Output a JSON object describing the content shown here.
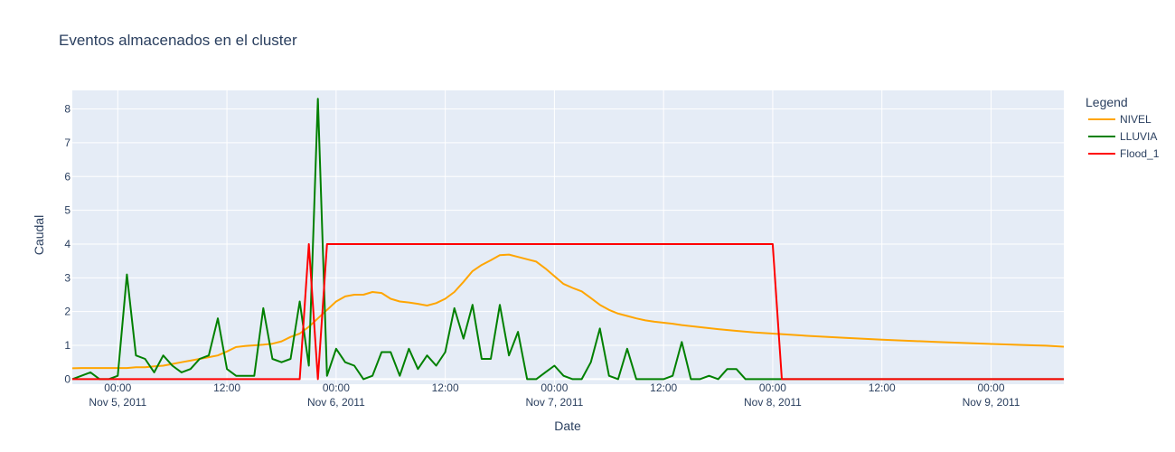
{
  "chart_data": {
    "type": "line",
    "title": "Eventos almacenados en el cluster",
    "xlabel": "Date",
    "ylabel": "Caudal",
    "legend_title": "Legend",
    "legend_position": "right",
    "grid": true,
    "xlim": [
      "2011-11-04 19:00",
      "2011-11-09 08:00"
    ],
    "ylim": [
      -0.15,
      8.55
    ],
    "x_ticks": [
      {
        "t": "2011-11-05 00:00",
        "label": "00:00",
        "sublabel": "Nov 5, 2011"
      },
      {
        "t": "2011-11-05 12:00",
        "label": "12:00",
        "sublabel": ""
      },
      {
        "t": "2011-11-06 00:00",
        "label": "00:00",
        "sublabel": "Nov 6, 2011"
      },
      {
        "t": "2011-11-06 12:00",
        "label": "12:00",
        "sublabel": ""
      },
      {
        "t": "2011-11-07 00:00",
        "label": "00:00",
        "sublabel": "Nov 7, 2011"
      },
      {
        "t": "2011-11-07 12:00",
        "label": "12:00",
        "sublabel": ""
      },
      {
        "t": "2011-11-08 00:00",
        "label": "00:00",
        "sublabel": "Nov 8, 2011"
      },
      {
        "t": "2011-11-08 12:00",
        "label": "12:00",
        "sublabel": ""
      },
      {
        "t": "2011-11-09 00:00",
        "label": "00:00",
        "sublabel": "Nov 9, 2011"
      }
    ],
    "y_ticks": [
      0,
      1,
      2,
      3,
      4,
      5,
      6,
      7,
      8
    ],
    "series": [
      {
        "name": "NIVEL",
        "color": "#FFA500",
        "points": [
          [
            "2011-11-04 19:00",
            0.32
          ],
          [
            "2011-11-04 20:00",
            0.33
          ],
          [
            "2011-11-04 21:00",
            0.33
          ],
          [
            "2011-11-04 22:00",
            0.33
          ],
          [
            "2011-11-04 23:00",
            0.33
          ],
          [
            "2011-11-05 00:00",
            0.33
          ],
          [
            "2011-11-05 01:00",
            0.33
          ],
          [
            "2011-11-05 02:00",
            0.35
          ],
          [
            "2011-11-05 03:00",
            0.35
          ],
          [
            "2011-11-05 04:00",
            0.38
          ],
          [
            "2011-11-05 05:00",
            0.4
          ],
          [
            "2011-11-05 06:00",
            0.45
          ],
          [
            "2011-11-05 07:00",
            0.5
          ],
          [
            "2011-11-05 08:00",
            0.55
          ],
          [
            "2011-11-05 09:00",
            0.6
          ],
          [
            "2011-11-05 10:00",
            0.65
          ],
          [
            "2011-11-05 11:00",
            0.7
          ],
          [
            "2011-11-05 12:00",
            0.82
          ],
          [
            "2011-11-05 13:00",
            0.95
          ],
          [
            "2011-11-05 14:00",
            0.98
          ],
          [
            "2011-11-05 15:00",
            1.0
          ],
          [
            "2011-11-05 16:00",
            1.02
          ],
          [
            "2011-11-05 17:00",
            1.05
          ],
          [
            "2011-11-05 18:00",
            1.12
          ],
          [
            "2011-11-05 19:00",
            1.25
          ],
          [
            "2011-11-05 20:00",
            1.35
          ],
          [
            "2011-11-05 21:00",
            1.55
          ],
          [
            "2011-11-05 22:00",
            1.8
          ],
          [
            "2011-11-05 23:00",
            2.05
          ],
          [
            "2011-11-06 00:00",
            2.3
          ],
          [
            "2011-11-06 01:00",
            2.45
          ],
          [
            "2011-11-06 02:00",
            2.5
          ],
          [
            "2011-11-06 03:00",
            2.5
          ],
          [
            "2011-11-06 04:00",
            2.58
          ],
          [
            "2011-11-06 05:00",
            2.55
          ],
          [
            "2011-11-06 06:00",
            2.38
          ],
          [
            "2011-11-06 07:00",
            2.3
          ],
          [
            "2011-11-06 08:00",
            2.27
          ],
          [
            "2011-11-06 09:00",
            2.23
          ],
          [
            "2011-11-06 10:00",
            2.18
          ],
          [
            "2011-11-06 11:00",
            2.25
          ],
          [
            "2011-11-06 12:00",
            2.38
          ],
          [
            "2011-11-06 13:00",
            2.58
          ],
          [
            "2011-11-06 14:00",
            2.88
          ],
          [
            "2011-11-06 15:00",
            3.2
          ],
          [
            "2011-11-06 16:00",
            3.38
          ],
          [
            "2011-11-06 17:00",
            3.52
          ],
          [
            "2011-11-06 18:00",
            3.67
          ],
          [
            "2011-11-06 19:00",
            3.69
          ],
          [
            "2011-11-06 20:00",
            3.62
          ],
          [
            "2011-11-06 21:00",
            3.55
          ],
          [
            "2011-11-06 22:00",
            3.48
          ],
          [
            "2011-11-06 23:00",
            3.28
          ],
          [
            "2011-11-07 00:00",
            3.05
          ],
          [
            "2011-11-07 01:00",
            2.82
          ],
          [
            "2011-11-07 02:00",
            2.7
          ],
          [
            "2011-11-07 03:00",
            2.6
          ],
          [
            "2011-11-07 04:00",
            2.4
          ],
          [
            "2011-11-07 05:00",
            2.2
          ],
          [
            "2011-11-07 06:00",
            2.05
          ],
          [
            "2011-11-07 07:00",
            1.94
          ],
          [
            "2011-11-07 08:00",
            1.87
          ],
          [
            "2011-11-07 09:00",
            1.8
          ],
          [
            "2011-11-07 10:00",
            1.74
          ],
          [
            "2011-11-07 11:00",
            1.7
          ],
          [
            "2011-11-07 12:00",
            1.67
          ],
          [
            "2011-11-07 13:00",
            1.64
          ],
          [
            "2011-11-07 14:00",
            1.6
          ],
          [
            "2011-11-07 16:00",
            1.54
          ],
          [
            "2011-11-07 18:00",
            1.48
          ],
          [
            "2011-11-07 20:00",
            1.43
          ],
          [
            "2011-11-07 22:00",
            1.38
          ],
          [
            "2011-11-08 00:00",
            1.35
          ],
          [
            "2011-11-08 04:00",
            1.28
          ],
          [
            "2011-11-08 08:00",
            1.22
          ],
          [
            "2011-11-08 12:00",
            1.17
          ],
          [
            "2011-11-08 18:00",
            1.1
          ],
          [
            "2011-11-09 00:00",
            1.04
          ],
          [
            "2011-11-09 06:00",
            0.99
          ],
          [
            "2011-11-09 08:00",
            0.96
          ]
        ]
      },
      {
        "name": "LLUVIA",
        "color": "#008000",
        "points": [
          [
            "2011-11-04 19:00",
            0.0
          ],
          [
            "2011-11-04 21:00",
            0.2
          ],
          [
            "2011-11-04 22:00",
            0.0
          ],
          [
            "2011-11-04 23:00",
            0.0
          ],
          [
            "2011-11-05 00:00",
            0.1
          ],
          [
            "2011-11-05 01:00",
            3.1
          ],
          [
            "2011-11-05 02:00",
            0.7
          ],
          [
            "2011-11-05 03:00",
            0.6
          ],
          [
            "2011-11-05 04:00",
            0.2
          ],
          [
            "2011-11-05 05:00",
            0.7
          ],
          [
            "2011-11-05 06:00",
            0.4
          ],
          [
            "2011-11-05 07:00",
            0.2
          ],
          [
            "2011-11-05 08:00",
            0.3
          ],
          [
            "2011-11-05 09:00",
            0.6
          ],
          [
            "2011-11-05 10:00",
            0.7
          ],
          [
            "2011-11-05 11:00",
            1.8
          ],
          [
            "2011-11-05 12:00",
            0.3
          ],
          [
            "2011-11-05 13:00",
            0.1
          ],
          [
            "2011-11-05 14:00",
            0.1
          ],
          [
            "2011-11-05 15:00",
            0.1
          ],
          [
            "2011-11-05 16:00",
            2.1
          ],
          [
            "2011-11-05 17:00",
            0.6
          ],
          [
            "2011-11-05 18:00",
            0.5
          ],
          [
            "2011-11-05 19:00",
            0.6
          ],
          [
            "2011-11-05 20:00",
            2.3
          ],
          [
            "2011-11-05 21:00",
            0.4
          ],
          [
            "2011-11-05 22:00",
            8.3
          ],
          [
            "2011-11-05 23:00",
            0.1
          ],
          [
            "2011-11-06 00:00",
            0.9
          ],
          [
            "2011-11-06 01:00",
            0.5
          ],
          [
            "2011-11-06 02:00",
            0.4
          ],
          [
            "2011-11-06 03:00",
            0.0
          ],
          [
            "2011-11-06 04:00",
            0.1
          ],
          [
            "2011-11-06 05:00",
            0.8
          ],
          [
            "2011-11-06 06:00",
            0.8
          ],
          [
            "2011-11-06 07:00",
            0.1
          ],
          [
            "2011-11-06 08:00",
            0.9
          ],
          [
            "2011-11-06 09:00",
            0.3
          ],
          [
            "2011-11-06 10:00",
            0.7
          ],
          [
            "2011-11-06 11:00",
            0.4
          ],
          [
            "2011-11-06 12:00",
            0.8
          ],
          [
            "2011-11-06 13:00",
            2.1
          ],
          [
            "2011-11-06 14:00",
            1.2
          ],
          [
            "2011-11-06 15:00",
            2.2
          ],
          [
            "2011-11-06 16:00",
            0.6
          ],
          [
            "2011-11-06 17:00",
            0.6
          ],
          [
            "2011-11-06 18:00",
            2.2
          ],
          [
            "2011-11-06 19:00",
            0.7
          ],
          [
            "2011-11-06 20:00",
            1.4
          ],
          [
            "2011-11-06 21:00",
            0.0
          ],
          [
            "2011-11-06 22:00",
            0.0
          ],
          [
            "2011-11-06 23:00",
            0.2
          ],
          [
            "2011-11-07 00:00",
            0.4
          ],
          [
            "2011-11-07 01:00",
            0.1
          ],
          [
            "2011-11-07 02:00",
            0.0
          ],
          [
            "2011-11-07 03:00",
            0.0
          ],
          [
            "2011-11-07 04:00",
            0.5
          ],
          [
            "2011-11-07 05:00",
            1.5
          ],
          [
            "2011-11-07 06:00",
            0.1
          ],
          [
            "2011-11-07 07:00",
            0.0
          ],
          [
            "2011-11-07 08:00",
            0.9
          ],
          [
            "2011-11-07 09:00",
            0.0
          ],
          [
            "2011-11-07 10:00",
            0.0
          ],
          [
            "2011-11-07 11:00",
            0.0
          ],
          [
            "2011-11-07 12:00",
            0.0
          ],
          [
            "2011-11-07 13:00",
            0.1
          ],
          [
            "2011-11-07 14:00",
            1.1
          ],
          [
            "2011-11-07 15:00",
            0.0
          ],
          [
            "2011-11-07 16:00",
            0.0
          ],
          [
            "2011-11-07 17:00",
            0.1
          ],
          [
            "2011-11-07 18:00",
            0.0
          ],
          [
            "2011-11-07 19:00",
            0.3
          ],
          [
            "2011-11-07 20:00",
            0.3
          ],
          [
            "2011-11-07 21:00",
            0.0
          ],
          [
            "2011-11-09 08:00",
            0.0
          ]
        ]
      },
      {
        "name": "Flood_1",
        "color": "#FF0000",
        "points": [
          [
            "2011-11-04 19:00",
            0.0
          ],
          [
            "2011-11-05 20:00",
            0.0
          ],
          [
            "2011-11-05 21:00",
            4.0
          ],
          [
            "2011-11-05 22:00",
            0.0
          ],
          [
            "2011-11-05 23:00",
            4.0
          ],
          [
            "2011-11-08 00:00",
            4.0
          ],
          [
            "2011-11-08 01:00",
            0.0
          ],
          [
            "2011-11-09 08:00",
            0.0
          ]
        ]
      }
    ]
  }
}
